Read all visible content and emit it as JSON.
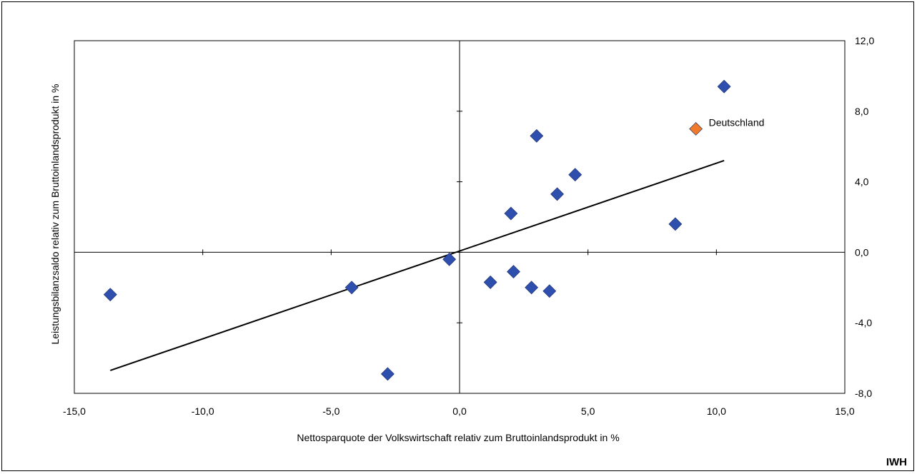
{
  "source_label": "IWH",
  "chart_data": {
    "type": "scatter",
    "xlabel": "Nettosparquote der Volkswirtschaft relativ zum Bruttoinlandsprodukt in %",
    "ylabel": "Leistungsbilanzsaldo relativ zum Bruttoinlandsprodukt in %",
    "xlim": [
      -15,
      15
    ],
    "ylim": [
      -8,
      12
    ],
    "x_ticks": [
      -15,
      -10,
      -5,
      0,
      5,
      10,
      15
    ],
    "x_tick_labels": [
      "-15,0",
      "-10,0",
      "-5,0",
      "0,0",
      "5,0",
      "10,0",
      "15,0"
    ],
    "y_ticks": [
      -8,
      -4,
      0,
      4,
      8,
      12
    ],
    "y_tick_labels": [
      "-8,0",
      "-4,0",
      "0,0",
      "4,0",
      "8,0",
      "12,0"
    ],
    "y_axis_position": "right",
    "grid": false,
    "series": [
      {
        "color": "#2E4FAE",
        "marker": "diamond",
        "x": [
          -13.6,
          -4.2,
          -2.8,
          -0.4,
          1.2,
          2.0,
          2.1,
          2.8,
          3.0,
          3.5,
          3.8,
          4.5,
          8.4,
          10.3
        ],
        "y": [
          -2.4,
          -2.0,
          -6.9,
          -0.4,
          -1.7,
          2.2,
          -1.1,
          -2.0,
          6.6,
          -2.2,
          3.3,
          4.4,
          1.6,
          9.4
        ]
      },
      {
        "color": "#F07A2A",
        "marker": "diamond",
        "x": [
          9.2
        ],
        "y": [
          7.0
        ]
      }
    ],
    "trendline": {
      "x": [
        -13.6,
        10.3
      ],
      "y": [
        -6.7,
        5.2
      ],
      "color": "#000000"
    },
    "annotations": [
      {
        "text": "Deutschland",
        "x": 9.2,
        "y": 7.0
      }
    ]
  }
}
